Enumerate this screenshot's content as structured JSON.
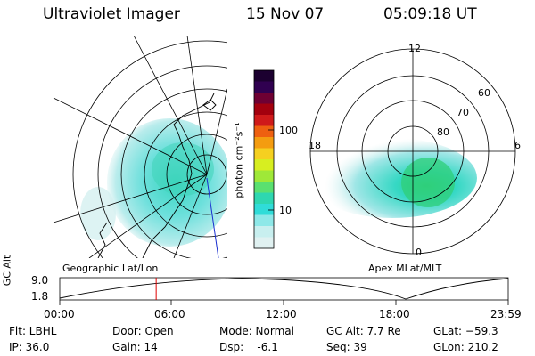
{
  "header": {
    "title": "Ultraviolet Imager",
    "date": "15 Nov 07",
    "time": "05:09:18 UT"
  },
  "colorbar": {
    "unit_label": "photon cm⁻²s⁻¹",
    "ticks": [
      "100",
      "10"
    ],
    "colors": [
      "#1c0030",
      "#300050",
      "#6e0033",
      "#a3000e",
      "#cf1a1a",
      "#ee6010",
      "#f49c10",
      "#f5d020",
      "#d7ee20",
      "#9fe838",
      "#5ae070",
      "#2ed7b0",
      "#30dcd8",
      "#8ee8e8",
      "#c8efef",
      "#e0f1f1"
    ]
  },
  "left_map": {
    "caption": "Geographic Lat/Lon"
  },
  "right_map": {
    "caption": "Apex MLat/MLT",
    "mlt_labels": [
      "12",
      "18",
      "6",
      "0"
    ],
    "lat_labels": [
      "60",
      "70",
      "80"
    ]
  },
  "altitude_plot": {
    "ylabel": "GC Alt",
    "yticks": [
      "9.0",
      "1.8"
    ],
    "xticks": [
      "00:00",
      "06:00",
      "12:00",
      "18:00",
      "23:59"
    ],
    "marker_time": "05:09",
    "marker_fraction": 0.215
  },
  "status": {
    "flt": "Flt: LBHL",
    "ip": "IP: 36.0",
    "door": "Door: Open",
    "gain": "Gain: 14",
    "mode": "Mode: Normal",
    "dsp": "Dsp:    -6.1",
    "gc_alt": "GC Alt: 7.7 Re",
    "seq": "Seq: 39",
    "glat": "GLat: −59.3",
    "glon": "GLon: 210.2"
  }
}
